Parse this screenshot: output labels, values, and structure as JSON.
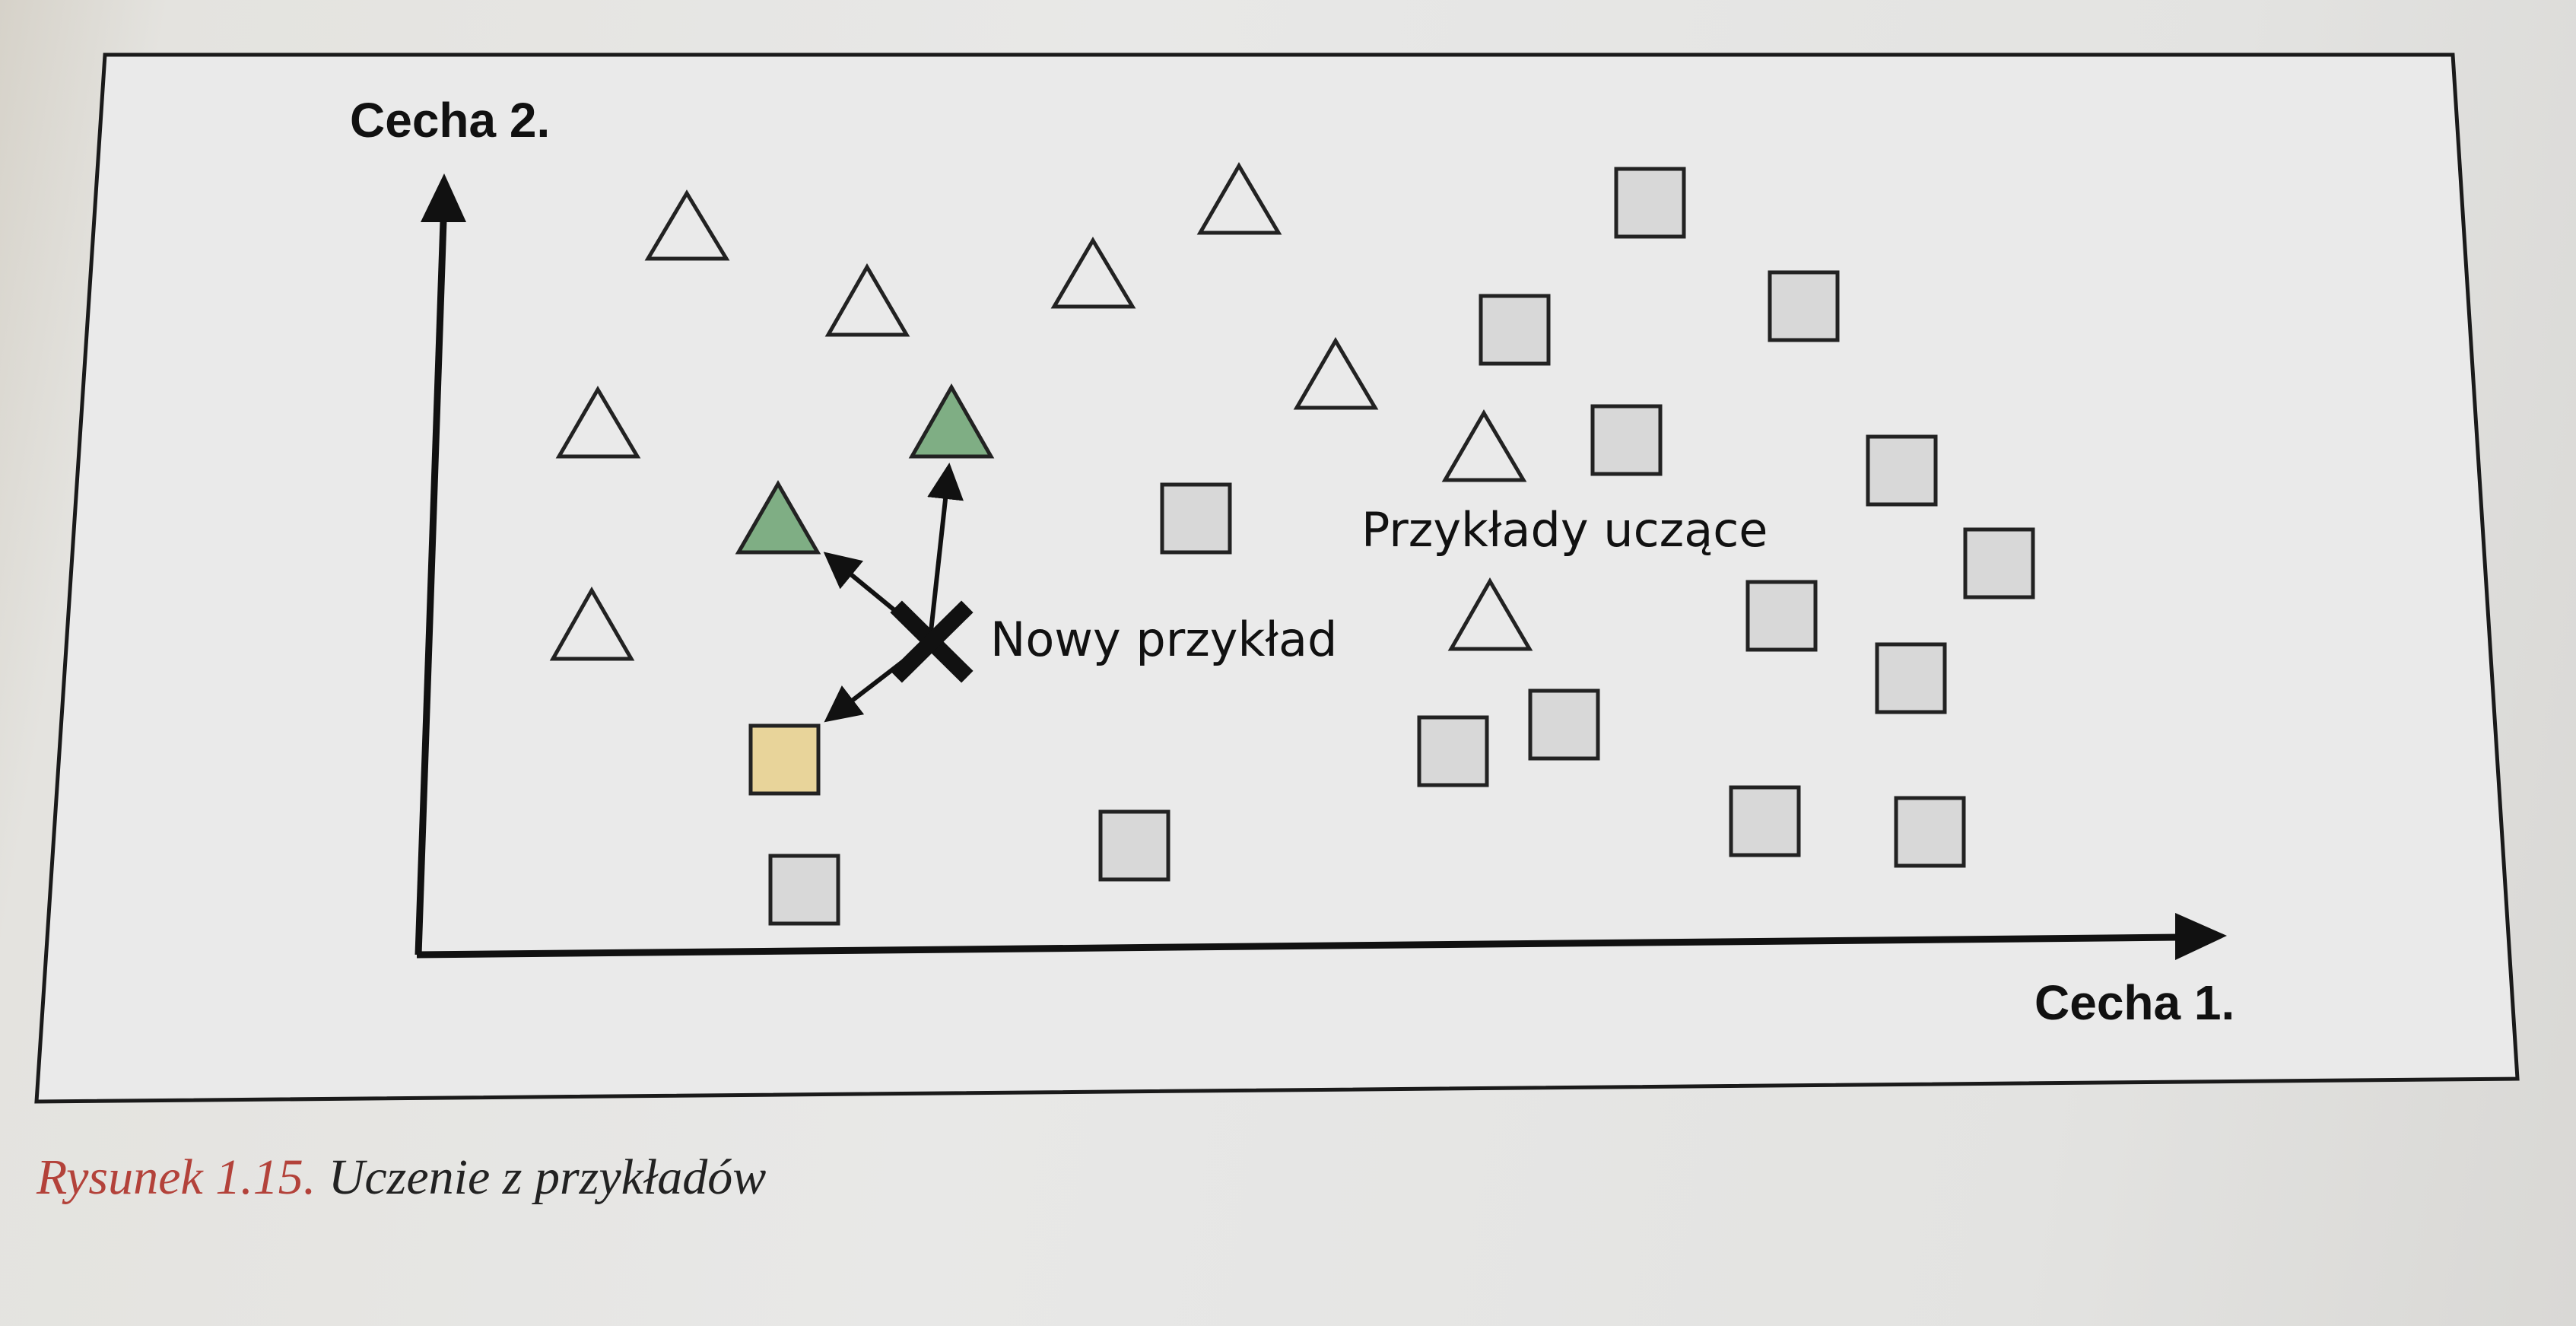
{
  "figure": {
    "y_axis_label": "Cecha 2.",
    "x_axis_label": "Cecha 1.",
    "new_example_label": "Nowy przykład",
    "training_examples_label": "Przykłady uczące"
  },
  "caption": {
    "number": "Rysunek 1.15.",
    "text": "Uczenie z przykładów"
  },
  "colors": {
    "neighbor_triangle": "#7fae84",
    "neighbor_square": "#e8d49a",
    "square_fill": "#d8d8d8",
    "outline": "#222222"
  },
  "legend_classes": [
    "triangle",
    "square"
  ]
}
